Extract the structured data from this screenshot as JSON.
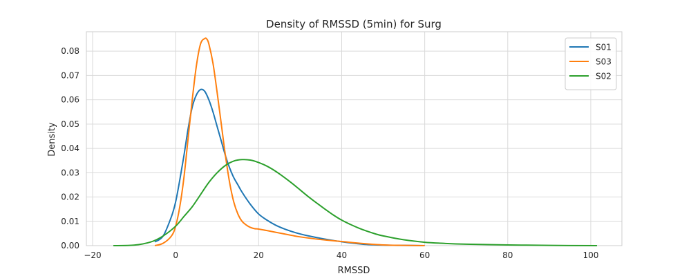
{
  "chart_data": {
    "type": "line",
    "title": "Density of RMSSD (5min) for Surg",
    "xlabel": "RMSSD",
    "ylabel": "Density",
    "xlim": [
      -21.5,
      107.5
    ],
    "ylim": [
      0,
      0.088
    ],
    "xticks": [
      -20,
      0,
      20,
      40,
      60,
      80,
      100
    ],
    "xtick_labels": [
      "−20",
      "0",
      "20",
      "40",
      "60",
      "80",
      "100"
    ],
    "yticks": [
      0,
      0.01,
      0.02,
      0.03,
      0.04,
      0.05,
      0.06,
      0.07,
      0.08
    ],
    "ytick_labels": [
      "0.00",
      "0.01",
      "0.02",
      "0.03",
      "0.04",
      "0.05",
      "0.06",
      "0.07",
      "0.08"
    ],
    "grid": true,
    "legend_position": "upper right",
    "series": [
      {
        "name": "S01",
        "color": "#1f77b4",
        "x": [
          -5,
          -3,
          -1,
          0,
          1,
          2,
          3,
          4,
          5,
          6,
          7,
          8,
          9,
          10,
          11,
          12,
          13,
          14,
          15,
          16,
          18,
          20,
          22,
          24,
          26,
          28,
          30,
          32,
          35,
          40,
          45,
          50,
          55,
          60
        ],
        "y": [
          0.0015,
          0.004,
          0.012,
          0.018,
          0.027,
          0.037,
          0.048,
          0.057,
          0.062,
          0.0642,
          0.0635,
          0.06,
          0.055,
          0.049,
          0.043,
          0.037,
          0.032,
          0.028,
          0.025,
          0.022,
          0.017,
          0.013,
          0.0105,
          0.0085,
          0.007,
          0.0058,
          0.0048,
          0.004,
          0.003,
          0.0016,
          0.0006,
          0.0002,
          0.0001,
          0.0
        ]
      },
      {
        "name": "S03",
        "color": "#ff7f0e",
        "x": [
          -5,
          -3,
          -1,
          0,
          1,
          2,
          3,
          4,
          5,
          6,
          7,
          7.5,
          8,
          9,
          10,
          11,
          12,
          13,
          14,
          15,
          16,
          17,
          18,
          19,
          20,
          22,
          25,
          28,
          30,
          35,
          40,
          45,
          50,
          55,
          60
        ],
        "y": [
          0.0,
          0.001,
          0.004,
          0.008,
          0.016,
          0.028,
          0.044,
          0.06,
          0.074,
          0.083,
          0.0852,
          0.085,
          0.083,
          0.075,
          0.063,
          0.05,
          0.037,
          0.026,
          0.018,
          0.013,
          0.01,
          0.0085,
          0.0075,
          0.007,
          0.0068,
          0.0062,
          0.0052,
          0.0042,
          0.0036,
          0.0025,
          0.0017,
          0.0009,
          0.0003,
          0.0001,
          0.0
        ]
      },
      {
        "name": "S02",
        "color": "#2ca02c",
        "x": [
          -15,
          -10,
          -6,
          -3,
          0,
          2,
          4,
          6,
          8,
          10,
          12,
          14,
          16,
          18,
          20,
          22,
          24,
          26,
          28,
          30,
          32,
          34,
          36,
          38,
          40,
          42,
          44,
          46,
          48,
          50,
          55,
          60,
          65,
          70,
          80,
          90,
          101.5
        ],
        "y": [
          0.0,
          0.0002,
          0.0015,
          0.004,
          0.008,
          0.012,
          0.016,
          0.021,
          0.026,
          0.03,
          0.033,
          0.0348,
          0.0354,
          0.0352,
          0.0342,
          0.0327,
          0.0307,
          0.0283,
          0.0257,
          0.0229,
          0.0201,
          0.0175,
          0.015,
          0.0126,
          0.0105,
          0.0088,
          0.0073,
          0.006,
          0.0049,
          0.004,
          0.0024,
          0.0014,
          0.0009,
          0.0006,
          0.0003,
          0.0001,
          0.0
        ]
      }
    ]
  }
}
